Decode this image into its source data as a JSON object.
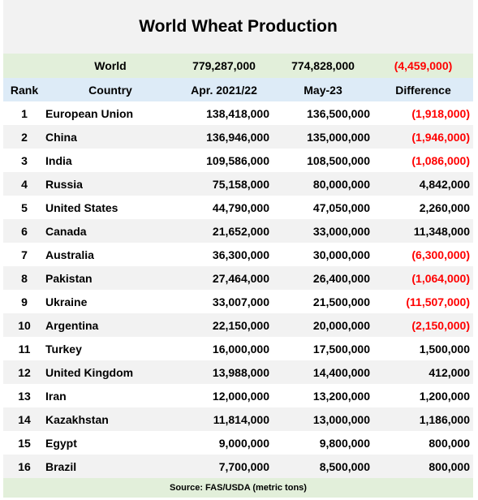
{
  "title": "World Wheat Production",
  "world": {
    "label": "World",
    "apr": "779,287,000",
    "may": "774,828,000",
    "diff": "(4,459,000)"
  },
  "headers": {
    "rank": "Rank",
    "country": "Country",
    "apr": "Apr. 2021/22",
    "may": "May-23",
    "diff": "Difference"
  },
  "rows": [
    {
      "rank": "1",
      "country": "European Union",
      "apr": "138,418,000",
      "may": "136,500,000",
      "diff": "(1,918,000)",
      "negative": true
    },
    {
      "rank": "2",
      "country": "China",
      "apr": "136,946,000",
      "may": "135,000,000",
      "diff": "(1,946,000)",
      "negative": true
    },
    {
      "rank": "3",
      "country": "India",
      "apr": "109,586,000",
      "may": "108,500,000",
      "diff": "(1,086,000)",
      "negative": true
    },
    {
      "rank": "4",
      "country": "Russia",
      "apr": "75,158,000",
      "may": "80,000,000",
      "diff": "4,842,000",
      "negative": false
    },
    {
      "rank": "5",
      "country": "United States",
      "apr": "44,790,000",
      "may": "47,050,000",
      "diff": "2,260,000",
      "negative": false
    },
    {
      "rank": "6",
      "country": "Canada",
      "apr": "21,652,000",
      "may": "33,000,000",
      "diff": "11,348,000",
      "negative": false
    },
    {
      "rank": "7",
      "country": "Australia",
      "apr": "36,300,000",
      "may": "30,000,000",
      "diff": "(6,300,000)",
      "negative": true
    },
    {
      "rank": "8",
      "country": "Pakistan",
      "apr": "27,464,000",
      "may": "26,400,000",
      "diff": "(1,064,000)",
      "negative": true
    },
    {
      "rank": "9",
      "country": "Ukraine",
      "apr": "33,007,000",
      "may": "21,500,000",
      "diff": "(11,507,000)",
      "negative": true
    },
    {
      "rank": "10",
      "country": "Argentina",
      "apr": "22,150,000",
      "may": "20,000,000",
      "diff": "(2,150,000)",
      "negative": true
    },
    {
      "rank": "11",
      "country": "Turkey",
      "apr": "16,000,000",
      "may": "17,500,000",
      "diff": "1,500,000",
      "negative": false
    },
    {
      "rank": "12",
      "country": "United Kingdom",
      "apr": "13,988,000",
      "may": "14,400,000",
      "diff": "412,000",
      "negative": false
    },
    {
      "rank": "13",
      "country": "Iran",
      "apr": "12,000,000",
      "may": "13,200,000",
      "diff": "1,200,000",
      "negative": false
    },
    {
      "rank": "14",
      "country": "Kazakhstan",
      "apr": "11,814,000",
      "may": "13,000,000",
      "diff": "1,186,000",
      "negative": false
    },
    {
      "rank": "15",
      "country": "Egypt",
      "apr": "9,000,000",
      "may": "9,800,000",
      "diff": "800,000",
      "negative": false
    },
    {
      "rank": "16",
      "country": "Brazil",
      "apr": "7,700,000",
      "may": "8,500,000",
      "diff": "800,000",
      "negative": false
    }
  ],
  "source": "Source:  FAS/USDA (metric tons)",
  "colors": {
    "negative": "#ff0000",
    "world_band": "#e2efda",
    "header_band": "#ddebf7",
    "title_band": "#f2f2f2"
  }
}
